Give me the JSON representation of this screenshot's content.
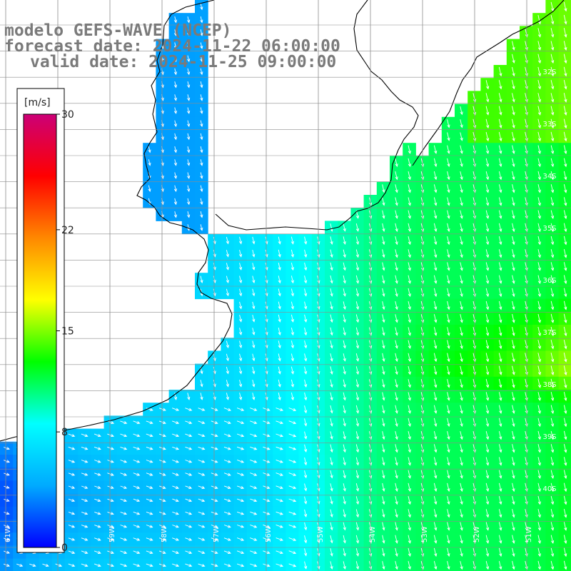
{
  "title": {
    "model": "modelo GEFS-WAVE (NCEP)",
    "forecast": "forecast date: 2024-11-22 06:00:00",
    "valid": "valid date: 2024-11-25 09:00:00"
  },
  "colorbar": {
    "unit": "[m/s]",
    "ticks": [
      "30",
      "22",
      "15",
      "8",
      "0"
    ],
    "tick_values": [
      30,
      22,
      15,
      8,
      0
    ],
    "min": 0,
    "max": 30,
    "colors": [
      "#0000ff",
      "#00aaff",
      "#00ffff",
      "#00ff00",
      "#ffff00",
      "#ff8800",
      "#ff0000",
      "#cc0077"
    ]
  },
  "grid": {
    "lat_labels": [
      "32S",
      "33S",
      "34S",
      "35S",
      "36S",
      "37S",
      "38S",
      "39S",
      "40S"
    ],
    "lon_labels": [
      "61W",
      "60W",
      "59W",
      "58W",
      "57W",
      "56W",
      "55W",
      "54W",
      "53W",
      "52W",
      "51W"
    ]
  },
  "colors": {
    "land": "#ffffff",
    "coast": "#000000",
    "grid": "#8c8c8c",
    "arrows": "#ffffff",
    "title": "#7a7a7a"
  }
}
